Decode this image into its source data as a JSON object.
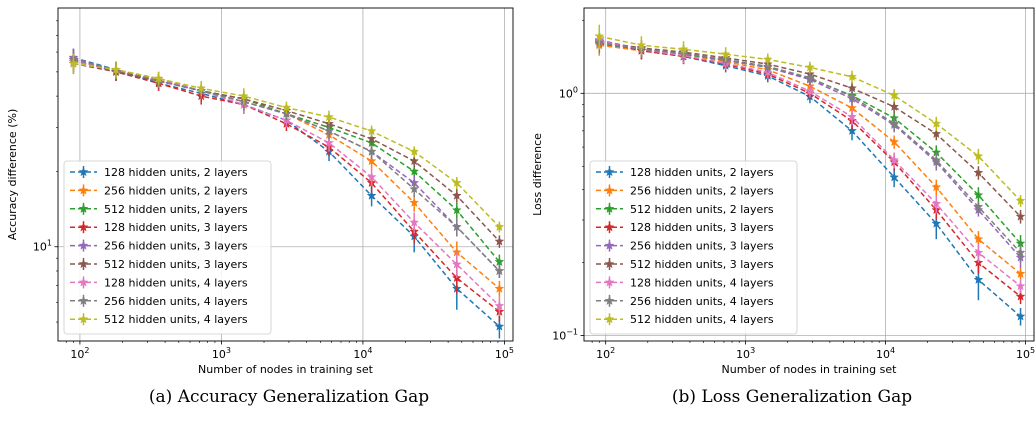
{
  "series_style": {
    "names": [
      "128 hidden units, 2 layers",
      "256 hidden units, 2 layers",
      "512 hidden units, 2 layers",
      "128 hidden units, 3 layers",
      "256 hidden units, 3 layers",
      "512 hidden units, 3 layers",
      "128 hidden units, 4 layers",
      "256 hidden units, 4 layers",
      "512 hidden units, 4 layers"
    ],
    "colors": [
      "#1f77b4",
      "#ff7f0e",
      "#2ca02c",
      "#d62728",
      "#9467bd",
      "#8c564b",
      "#e377c2",
      "#7f7f7f",
      "#bcbd22"
    ],
    "marker": "star",
    "line_style": "dashed"
  },
  "chart_data": [
    {
      "type": "line",
      "caption": "(a) Accuracy Generalization Gap",
      "xlabel": "Number of nodes in training set",
      "ylabel": "Accuracy difference (%)",
      "xscale": "log",
      "yscale": "log",
      "xlim": [
        70,
        115000
      ],
      "ylim": [
        4.2,
        90
      ],
      "xticks": [
        {
          "v": 100,
          "base": "10",
          "exp": "2"
        },
        {
          "v": 1000,
          "base": "10",
          "exp": "3"
        },
        {
          "v": 10000,
          "base": "10",
          "exp": "4"
        },
        {
          "v": 100000,
          "base": "10",
          "exp": "5"
        }
      ],
      "yticks": [
        {
          "v": 10,
          "base": "10",
          "exp": "1"
        }
      ],
      "grid": true,
      "legend_position": "lower-left",
      "x": [
        90,
        180,
        360,
        720,
        1440,
        2880,
        5760,
        11520,
        23040,
        46080,
        92160
      ],
      "series": [
        {
          "name": "128 hidden units, 2 layers",
          "values": [
            57,
            51,
            45,
            41,
            37,
            32,
            24,
            16,
            11,
            6.8,
            4.8
          ],
          "err": [
            5,
            4,
            3,
            3,
            3,
            2,
            2,
            1.5,
            1.5,
            1.2,
            0.5
          ]
        },
        {
          "name": "256 hidden units, 2 layers",
          "values": [
            56,
            50,
            47,
            42,
            38,
            34,
            28,
            22,
            15,
            9.5,
            6.8
          ],
          "err": [
            5,
            4,
            3,
            3,
            3,
            2,
            2,
            1.5,
            1.2,
            1,
            0.5
          ]
        },
        {
          "name": "512 hidden units, 2 layers",
          "values": [
            55,
            51,
            46,
            42,
            39,
            34,
            30,
            26,
            20,
            14,
            8.7
          ],
          "err": [
            5,
            4,
            3,
            3,
            3,
            2,
            2,
            1.5,
            1.2,
            1,
            0.6
          ]
        },
        {
          "name": "128 hidden units, 3 layers",
          "values": [
            56,
            50,
            45,
            40,
            37,
            31,
            25,
            18,
            11.5,
            7.5,
            5.5
          ],
          "err": [
            5,
            4,
            3,
            3,
            3,
            2,
            2,
            1.5,
            1.2,
            1,
            0.5
          ]
        },
        {
          "name": "256 hidden units, 3 layers",
          "values": [
            57,
            50,
            46,
            42,
            38,
            34,
            29,
            24,
            18,
            12,
            8
          ],
          "err": [
            5,
            4,
            3,
            3,
            3,
            2,
            2,
            1.5,
            1.2,
            1,
            0.5
          ]
        },
        {
          "name": "512 hidden units, 3 layers",
          "values": [
            54,
            50,
            46,
            42,
            39,
            35,
            31,
            27,
            22,
            16,
            10.5
          ],
          "err": [
            5,
            4,
            3,
            3,
            3,
            2,
            2,
            1.5,
            1.2,
            1,
            0.6
          ]
        },
        {
          "name": "128 hidden units, 4 layers",
          "values": [
            55,
            51,
            47,
            42,
            37,
            32,
            26,
            19,
            12.5,
            8.5,
            5.8
          ],
          "err": [
            5,
            4,
            3,
            3,
            3,
            2,
            2,
            1.5,
            1.2,
            1,
            0.5
          ]
        },
        {
          "name": "256 hidden units, 4 layers",
          "values": [
            56,
            51,
            46,
            42,
            38,
            34,
            29,
            24,
            17,
            12,
            8
          ],
          "err": [
            5,
            4,
            3,
            3,
            3,
            2,
            2,
            1.5,
            1.2,
            1,
            0.5
          ]
        },
        {
          "name": "512 hidden units, 4 layers",
          "values": [
            54,
            51,
            47,
            43,
            40,
            36,
            33,
            29,
            24,
            18,
            12
          ],
          "err": [
            5,
            4,
            3,
            3,
            3,
            2,
            2,
            1.5,
            1.2,
            1,
            0.6
          ]
        }
      ]
    },
    {
      "type": "line",
      "caption": "(b) Loss Generalization Gap",
      "xlabel": "Number of nodes in training set",
      "ylabel": "Loss difference",
      "xscale": "log",
      "yscale": "log",
      "xlim": [
        70,
        115000
      ],
      "ylim": [
        0.095,
        2.25
      ],
      "xticks": [
        {
          "v": 100,
          "base": "10",
          "exp": "2"
        },
        {
          "v": 1000,
          "base": "10",
          "exp": "3"
        },
        {
          "v": 10000,
          "base": "10",
          "exp": "4"
        },
        {
          "v": 100000,
          "base": "10",
          "exp": "5"
        }
      ],
      "yticks": [
        {
          "v": 0.1,
          "base": "10",
          "exp": "−1"
        },
        {
          "v": 1,
          "base": "10",
          "exp": "0"
        }
      ],
      "grid": true,
      "legend_position": "lower-left",
      "x": [
        90,
        180,
        360,
        720,
        1440,
        2880,
        5760,
        11520,
        23040,
        46080,
        92160
      ],
      "series": [
        {
          "name": "128 hidden units, 2 layers",
          "values": [
            1.6,
            1.5,
            1.42,
            1.3,
            1.18,
            0.97,
            0.7,
            0.45,
            0.29,
            0.17,
            0.12
          ],
          "err": [
            0.15,
            0.12,
            0.1,
            0.08,
            0.07,
            0.06,
            0.06,
            0.04,
            0.04,
            0.03,
            0.01
          ]
        },
        {
          "name": "256 hidden units, 2 layers",
          "values": [
            1.58,
            1.5,
            1.45,
            1.35,
            1.25,
            1.07,
            0.87,
            0.63,
            0.41,
            0.25,
            0.18
          ],
          "err": [
            0.15,
            0.12,
            0.1,
            0.08,
            0.07,
            0.06,
            0.06,
            0.04,
            0.03,
            0.02,
            0.01
          ]
        },
        {
          "name": "512 hidden units, 2 layers",
          "values": [
            1.62,
            1.52,
            1.45,
            1.37,
            1.28,
            1.15,
            0.98,
            0.79,
            0.57,
            0.38,
            0.24
          ],
          "err": [
            0.15,
            0.12,
            0.1,
            0.08,
            0.07,
            0.06,
            0.06,
            0.05,
            0.04,
            0.03,
            0.02
          ]
        },
        {
          "name": "128 hidden units, 3 layers",
          "values": [
            1.65,
            1.5,
            1.42,
            1.32,
            1.2,
            1.0,
            0.77,
            0.52,
            0.33,
            0.2,
            0.145
          ],
          "err": [
            0.15,
            0.12,
            0.1,
            0.08,
            0.07,
            0.06,
            0.06,
            0.04,
            0.03,
            0.02,
            0.01
          ]
        },
        {
          "name": "256 hidden units, 3 layers",
          "values": [
            1.66,
            1.52,
            1.46,
            1.37,
            1.28,
            1.14,
            0.95,
            0.74,
            0.52,
            0.33,
            0.21
          ],
          "err": [
            0.15,
            0.12,
            0.1,
            0.08,
            0.07,
            0.06,
            0.06,
            0.05,
            0.04,
            0.02,
            0.02
          ]
        },
        {
          "name": "512 hidden units, 3 layers",
          "values": [
            1.63,
            1.54,
            1.48,
            1.4,
            1.32,
            1.2,
            1.05,
            0.88,
            0.68,
            0.47,
            0.31
          ],
          "err": [
            0.15,
            0.12,
            0.1,
            0.08,
            0.07,
            0.06,
            0.06,
            0.05,
            0.04,
            0.03,
            0.02
          ]
        },
        {
          "name": "128 hidden units, 4 layers",
          "values": [
            1.64,
            1.52,
            1.43,
            1.33,
            1.22,
            1.02,
            0.8,
            0.53,
            0.35,
            0.22,
            0.16
          ],
          "err": [
            0.15,
            0.12,
            0.1,
            0.08,
            0.07,
            0.06,
            0.06,
            0.04,
            0.03,
            0.02,
            0.01
          ]
        },
        {
          "name": "256 hidden units, 4 layers",
          "values": [
            1.62,
            1.52,
            1.46,
            1.38,
            1.29,
            1.16,
            0.97,
            0.75,
            0.53,
            0.34,
            0.22
          ],
          "err": [
            0.15,
            0.12,
            0.1,
            0.08,
            0.07,
            0.06,
            0.06,
            0.05,
            0.04,
            0.02,
            0.02
          ]
        },
        {
          "name": "512 hidden units, 4 layers",
          "values": [
            1.72,
            1.58,
            1.52,
            1.45,
            1.38,
            1.28,
            1.17,
            0.98,
            0.75,
            0.55,
            0.36
          ],
          "err": [
            0.2,
            0.14,
            0.12,
            0.1,
            0.08,
            0.07,
            0.07,
            0.06,
            0.05,
            0.04,
            0.02
          ]
        }
      ]
    }
  ]
}
